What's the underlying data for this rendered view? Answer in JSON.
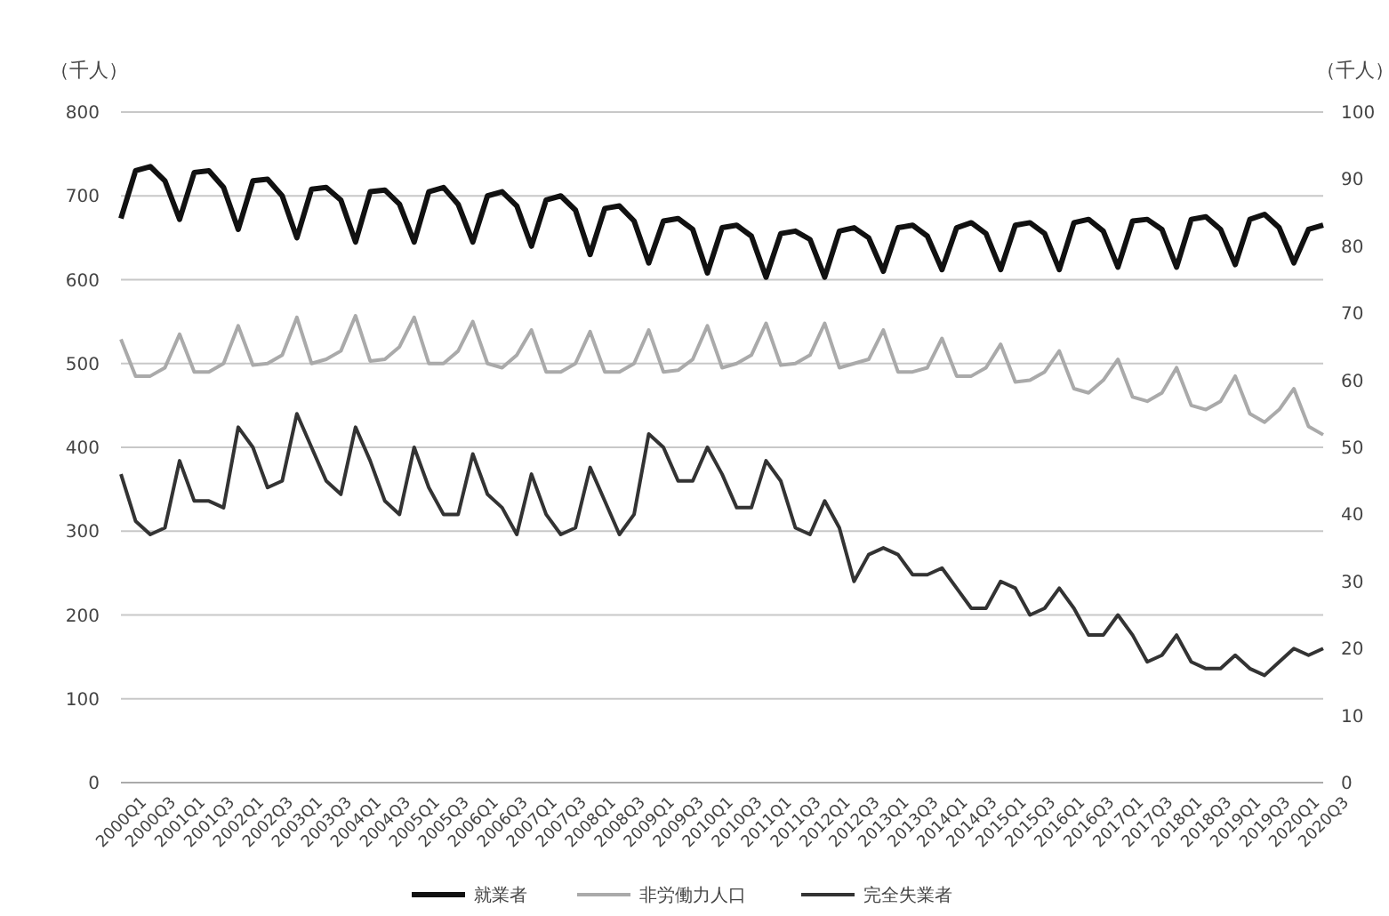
{
  "chart_data": {
    "type": "line",
    "ylabel": "（千人）",
    "y2label": "（千人）",
    "categories": [
      "2000Q1",
      null,
      "2000Q3",
      null,
      "2001Q1",
      null,
      "2001Q3",
      null,
      "2002Q1",
      null,
      "2002Q3",
      null,
      "2003Q1",
      null,
      "2003Q3",
      null,
      "2004Q1",
      null,
      "2004Q3",
      null,
      "2005Q1",
      null,
      "2005Q3",
      null,
      "2006Q1",
      null,
      "2006Q3",
      null,
      "2007Q1",
      null,
      "2007Q3",
      null,
      "2008Q1",
      null,
      "2008Q3",
      null,
      "2009Q1",
      null,
      "2009Q3",
      null,
      "2010Q1",
      null,
      "2010Q3",
      null,
      "2011Q1",
      null,
      "2011Q3",
      null,
      "2012Q1",
      null,
      "2012Q3",
      null,
      "2013Q1",
      null,
      "2013Q3",
      null,
      "2014Q1",
      null,
      "2014Q3",
      null,
      "2015Q1",
      null,
      "2015Q3",
      null,
      "2016Q1",
      null,
      "2016Q3",
      null,
      "2017Q1",
      null,
      "2017Q3",
      null,
      "2018Q1",
      null,
      "2018Q3",
      null,
      "2019Q1",
      null,
      "2019Q3",
      null,
      "2020Q1",
      null,
      "2020Q3"
    ],
    "ylim": [
      0,
      800
    ],
    "yticks": [
      0,
      100,
      200,
      300,
      400,
      500,
      600,
      700,
      800
    ],
    "y2lim": [
      0,
      100
    ],
    "y2ticks": [
      0,
      10,
      20,
      30,
      40,
      50,
      60,
      70,
      80,
      90,
      100
    ],
    "grid": "y",
    "legend": "bottom",
    "marker": "none",
    "series": [
      {
        "name": "就業者",
        "color": "#111111",
        "values": [
          673,
          730,
          735,
          718,
          672,
          728,
          730,
          710,
          660,
          718,
          720,
          700,
          650,
          708,
          710,
          695,
          645,
          705,
          707,
          690,
          645,
          705,
          710,
          690,
          645,
          700,
          705,
          688,
          640,
          695,
          700,
          683,
          630,
          685,
          688,
          670,
          620,
          670,
          673,
          660,
          608,
          662,
          665,
          652,
          603,
          655,
          658,
          648,
          603,
          658,
          662,
          650,
          610,
          662,
          665,
          652,
          612,
          662,
          668,
          655,
          612,
          665,
          668,
          655,
          612,
          668,
          672,
          658,
          615,
          670,
          672,
          660,
          615,
          672,
          675,
          660,
          618,
          672,
          678,
          662,
          620,
          660,
          665
        ]
      },
      {
        "name": "非労働力人口",
        "color": "#aaaaaa",
        "values": [
          529,
          485,
          485,
          495,
          535,
          490,
          490,
          500,
          545,
          498,
          500,
          510,
          555,
          500,
          505,
          515,
          557,
          503,
          505,
          520,
          555,
          500,
          500,
          515,
          550,
          500,
          495,
          510,
          540,
          490,
          490,
          500,
          538,
          490,
          490,
          500,
          540,
          490,
          492,
          505,
          545,
          495,
          500,
          510,
          548,
          498,
          500,
          510,
          548,
          495,
          500,
          505,
          540,
          490,
          490,
          495,
          530,
          485,
          485,
          495,
          523,
          478,
          480,
          490,
          515,
          470,
          465,
          480,
          505,
          460,
          455,
          465,
          495,
          450,
          445,
          455,
          485,
          440,
          430,
          445,
          470,
          425,
          415
        ]
      },
      {
        "name": "完全失業者",
        "color": "#333333",
        "axis": "y2",
        "values": [
          46,
          39,
          37,
          38,
          48,
          42,
          42,
          41,
          53,
          50,
          44,
          45,
          55,
          50,
          45,
          43,
          53,
          48,
          42,
          40,
          50,
          44,
          40,
          40,
          49,
          43,
          41,
          37,
          46,
          40,
          37,
          38,
          47,
          42,
          37,
          40,
          52,
          50,
          45,
          45,
          50,
          46,
          41,
          41,
          48,
          45,
          38,
          37,
          42,
          38,
          30,
          34,
          35,
          34,
          31,
          31,
          32,
          29,
          26,
          26,
          30,
          29,
          25,
          26,
          29,
          26,
          22,
          22,
          25,
          22,
          18,
          19,
          22,
          18,
          17,
          17,
          19,
          17,
          16,
          18,
          20,
          19,
          20
        ]
      }
    ]
  }
}
